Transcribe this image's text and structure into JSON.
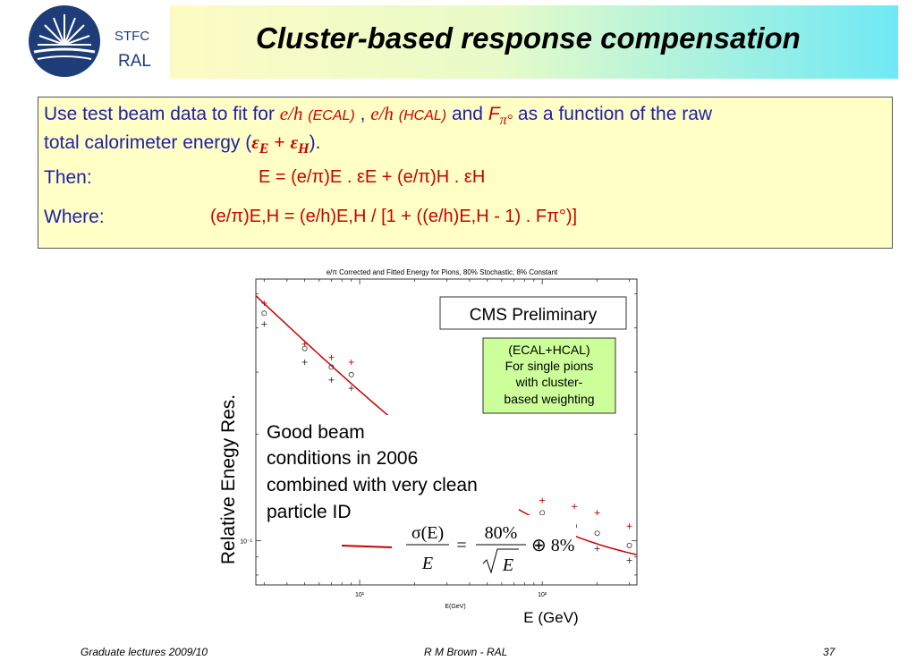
{
  "header": {
    "logo_top": "STFC",
    "logo_bottom": "RAL",
    "title": "Cluster-based response compensation"
  },
  "text": {
    "line1_a": "Use test beam data to fit for ",
    "line1_eh": "e/h",
    "line1_ecal": "(ECAL)",
    "line1_sep": " , ",
    "line1_hcal": "(HCAL)",
    "line1_and": " and ",
    "line1_f": "F",
    "line1_fsub": "π°",
    "line1_rest": " as a function of the raw",
    "line2_a": "total calorimeter energy (",
    "line2_eps_e": "ε",
    "line2_sub_e": "E",
    "line2_plus": " + ",
    "line2_eps_h": "ε",
    "line2_sub_h": "H",
    "line2_end": ").",
    "then_label": "Then:",
    "then_formula": "E = (e/π)E . εE + (e/π)H . εH",
    "where_label": "Where:",
    "where_formula": "(e/π)E,H = (e/h)E,H / [1 + ((e/h)E,H - 1) . Fπ°)]"
  },
  "chart_data": {
    "type": "scatter",
    "title": "e/π Corrected and Fitted Energy for Pions, 80% Stochastic, 8% Constant",
    "xlabel": "E(GeV)",
    "xlabel_big": "E (GeV)",
    "ylabel": "Relative Enegy  Res.",
    "xscale": "log",
    "yscale": "log",
    "xlim": [
      2.7,
      330
    ],
    "ylim": [
      0.075,
      0.55
    ],
    "x_ticks": [
      {
        "value": 10,
        "label": "10¹"
      },
      {
        "value": 100,
        "label": "10²"
      }
    ],
    "y_ticks": [
      {
        "value": 0.1,
        "label": "10⁻¹"
      }
    ],
    "series": [
      {
        "marker": "plus",
        "color": "#cc0000",
        "points": [
          [
            3.0,
            0.47
          ],
          [
            5,
            0.36
          ],
          [
            7,
            0.33
          ],
          [
            9,
            0.32
          ],
          [
            20,
            0.22
          ],
          [
            50,
            0.17
          ],
          [
            100,
            0.13
          ],
          [
            150,
            0.125
          ],
          [
            200,
            0.12
          ],
          [
            300,
            0.11
          ]
        ]
      },
      {
        "marker": "circle",
        "color": "#333333",
        "points": [
          [
            3.0,
            0.44
          ],
          [
            5,
            0.35
          ],
          [
            7,
            0.31
          ],
          [
            9,
            0.295
          ],
          [
            20,
            0.2
          ],
          [
            50,
            0.155
          ],
          [
            100,
            0.12
          ],
          [
            150,
            0.11
          ],
          [
            200,
            0.105
          ],
          [
            300,
            0.097
          ]
        ]
      },
      {
        "marker": "plus",
        "color": "#333333",
        "points": [
          [
            3.0,
            0.41
          ],
          [
            5,
            0.32
          ],
          [
            7,
            0.285
          ],
          [
            9,
            0.27
          ],
          [
            20,
            0.18
          ],
          [
            50,
            0.145
          ],
          [
            100,
            0.11
          ],
          [
            200,
            0.095
          ],
          [
            300,
            0.088
          ]
        ]
      }
    ],
    "fit": {
      "stochastic": 0.8,
      "constant": 0.08,
      "color": "#cc0000"
    },
    "annotations": {
      "cms": "CMS Preliminary",
      "green_box": [
        "(ECAL+HCAL)",
        "For single pions",
        "with cluster-",
        "based weighting"
      ],
      "text_box": [
        "Good beam",
        "conditions in 2006",
        "combined with very clean",
        "particle ID"
      ],
      "formula_sigma": "σ(E)",
      "formula_E": "E",
      "formula_eq": "=",
      "formula_num": "80%",
      "formula_den": "E",
      "formula_rest": "⊕ 8%"
    }
  },
  "footer": {
    "left": "Graduate lectures 2009/10",
    "center": "R M Brown - RAL",
    "right": "37"
  }
}
